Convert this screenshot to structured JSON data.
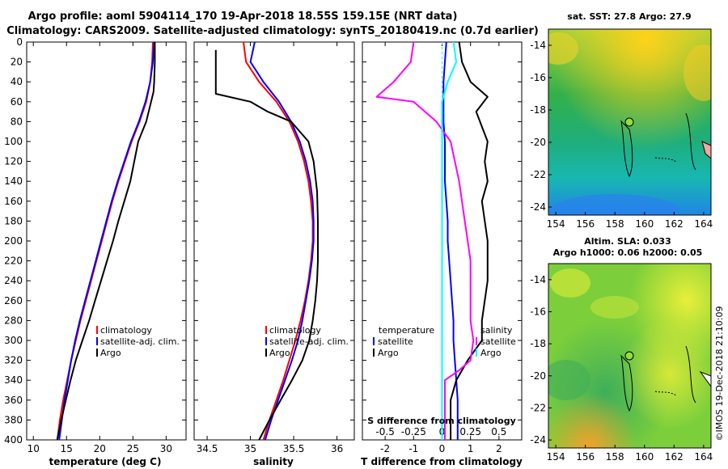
{
  "header": {
    "title_line1": "Argo profile: aoml 5904114_170 19-Apr-2018 18.55S 159.15E (NRT data)",
    "title_line2": "Climatology: CARS2009. Satellite-adjusted climatology: synTS_20180419.nc (0.7d earlier)"
  },
  "credit": "©IMOS 19-Dec-2018 21:10:09",
  "colors": {
    "argo": "#000000",
    "climatology": "#ff0000",
    "satellite": "#0000ff",
    "s_satellite": "#ff00ff",
    "s_argo": "#00ffff"
  },
  "depth_axis": {
    "ylim": [
      400,
      0
    ],
    "ticks": [
      0,
      20,
      40,
      60,
      80,
      100,
      120,
      140,
      160,
      180,
      200,
      220,
      240,
      260,
      280,
      300,
      320,
      340,
      360,
      380,
      400
    ],
    "tick_labels": [
      "0",
      "20",
      "40",
      "60",
      "80",
      "100",
      "120",
      "140",
      "160",
      "180",
      "200",
      "220",
      "240",
      "260",
      "280",
      "300",
      "320",
      "340",
      "360",
      "380",
      "400"
    ]
  },
  "chart_data": [
    {
      "type": "line",
      "id": "temperature",
      "xlabel": "temperature (deg C)",
      "xlim": [
        9,
        33
      ],
      "xticks": [
        10,
        15,
        20,
        25,
        30
      ],
      "xtick_labels": [
        "10",
        "15",
        "20",
        "25",
        "30"
      ],
      "legend": [
        "climatology",
        "satellite-adj. clim.",
        "Argo"
      ],
      "series": [
        {
          "name": "climatology",
          "color": "#ff0000",
          "x": [
            28.0,
            27.9,
            27.6,
            27.0,
            26.0,
            24.8,
            23.8,
            22.8,
            21.9,
            21.1,
            20.3,
            19.5,
            18.7,
            17.9,
            17.1,
            16.4,
            15.7,
            15.1,
            14.5,
            14.0,
            13.6
          ],
          "y": [
            0,
            20,
            40,
            60,
            80,
            100,
            120,
            140,
            160,
            180,
            200,
            220,
            240,
            260,
            280,
            300,
            320,
            340,
            360,
            380,
            400
          ]
        },
        {
          "name": "satellite-adj. clim.",
          "color": "#0000ff",
          "x": [
            28.2,
            28.0,
            27.6,
            26.9,
            25.9,
            24.7,
            23.7,
            22.7,
            21.8,
            21.0,
            20.2,
            19.4,
            18.6,
            17.8,
            17.0,
            16.3,
            15.7,
            15.2,
            14.7,
            14.3,
            13.9
          ],
          "y": [
            0,
            20,
            40,
            60,
            80,
            100,
            120,
            140,
            160,
            180,
            200,
            220,
            240,
            260,
            280,
            300,
            320,
            340,
            360,
            380,
            400
          ]
        },
        {
          "name": "Argo",
          "color": "#000000",
          "x": [
            28.3,
            28.3,
            28.2,
            28.1,
            27.0,
            25.8,
            25.2,
            24.6,
            23.7,
            22.8,
            22.0,
            21.1,
            20.2,
            19.3,
            18.4,
            17.4,
            16.4,
            15.6,
            14.9,
            14.2,
            13.6
          ],
          "y": [
            0,
            20,
            40,
            50,
            80,
            100,
            120,
            140,
            160,
            180,
            200,
            220,
            240,
            260,
            280,
            300,
            320,
            340,
            360,
            380,
            400
          ]
        }
      ]
    },
    {
      "type": "line",
      "id": "salinity",
      "xlabel": "salinity",
      "xlim": [
        34.35,
        36.2
      ],
      "xticks": [
        34.5,
        35,
        35.5,
        36
      ],
      "xtick_labels": [
        "34.5",
        "35",
        "35.5",
        "36"
      ],
      "legend": [
        "climatology",
        "satellite-adj. clim.",
        "Argo"
      ],
      "series": [
        {
          "name": "climatology",
          "color": "#ff0000",
          "x": [
            34.92,
            34.95,
            35.1,
            35.3,
            35.45,
            35.55,
            35.62,
            35.67,
            35.7,
            35.72,
            35.72,
            35.7,
            35.67,
            35.63,
            35.58,
            35.52,
            35.45,
            35.38,
            35.3,
            35.22,
            35.15
          ],
          "y": [
            0,
            20,
            40,
            60,
            80,
            100,
            120,
            140,
            160,
            180,
            200,
            220,
            240,
            260,
            280,
            300,
            320,
            340,
            360,
            380,
            400
          ]
        },
        {
          "name": "satellite-adj. clim.",
          "color": "#0000ff",
          "x": [
            35.05,
            35.0,
            35.15,
            35.33,
            35.47,
            35.57,
            35.64,
            35.69,
            35.72,
            35.73,
            35.73,
            35.71,
            35.68,
            35.64,
            35.6,
            35.55,
            35.48,
            35.4,
            35.32,
            35.24,
            35.17
          ],
          "y": [
            0,
            20,
            40,
            60,
            80,
            100,
            120,
            140,
            160,
            180,
            200,
            220,
            240,
            260,
            280,
            300,
            320,
            340,
            360,
            380,
            400
          ]
        },
        {
          "name": "Argo",
          "color": "#000000",
          "x": [
            34.6,
            34.6,
            34.6,
            34.6,
            35.0,
            35.2,
            35.47,
            35.67,
            35.73,
            35.77,
            35.78,
            35.78,
            35.77,
            35.75,
            35.72,
            35.68,
            35.6,
            35.48,
            35.35,
            35.22,
            35.1
          ],
          "y": [
            8,
            30,
            50,
            52,
            60,
            70,
            80,
            100,
            120,
            150,
            180,
            220,
            240,
            260,
            280,
            300,
            320,
            340,
            360,
            380,
            400
          ]
        }
      ]
    },
    {
      "type": "line",
      "id": "difference",
      "xlabel": "T difference from climatology",
      "xlabel_top": "S difference from climatology",
      "xlim": [
        -2.8,
        2.8
      ],
      "xticks": [
        -2,
        -1,
        0,
        1,
        2
      ],
      "xtick_labels": [
        "-2",
        "-1",
        "0",
        "1",
        "2"
      ],
      "s_xticks": [
        -0.5,
        -0.25,
        0,
        0.25,
        0.5
      ],
      "s_xtick_labels": [
        "-0.5",
        "-0.25",
        "0",
        "0.25",
        "0.5"
      ],
      "legend_temperature_title": "temperature",
      "legend_salinity_title": "salinity",
      "legend": [
        "satellite",
        "Argo",
        "satellite",
        "Argo"
      ],
      "series": [
        {
          "name": "T satellite",
          "color": "#0000ff",
          "x": [
            0.15,
            0.1,
            0.05,
            0.05,
            0.05,
            0.1,
            0.1,
            0.1,
            0.15,
            0.2,
            0.2,
            0.25,
            0.3,
            0.35,
            0.4,
            0.4,
            0.45,
            0.5,
            0.55,
            0.55,
            0.55
          ],
          "y": [
            0,
            20,
            40,
            60,
            80,
            100,
            120,
            140,
            160,
            180,
            200,
            220,
            240,
            260,
            280,
            300,
            320,
            340,
            360,
            380,
            400
          ]
        },
        {
          "name": "T Argo",
          "color": "#000000",
          "x": [
            0.6,
            0.7,
            1.0,
            1.6,
            1.2,
            1.6,
            1.5,
            1.6,
            1.4,
            1.5,
            1.6,
            1.6,
            1.6,
            1.5,
            1.4,
            1.4,
            0.9,
            0.5,
            0.3,
            0.3,
            0.3
          ],
          "y": [
            0,
            20,
            40,
            55,
            70,
            100,
            120,
            140,
            160,
            180,
            200,
            220,
            240,
            260,
            280,
            300,
            320,
            340,
            360,
            380,
            400
          ]
        },
        {
          "name": "S satellite",
          "color": "#ff00ff",
          "x": [
            -1.0,
            -1.1,
            -1.7,
            -2.3,
            -1.0,
            -0.2,
            0.3,
            0.6,
            0.8,
            0.9,
            1.0,
            1.0,
            1.0,
            1.0,
            1.1,
            1.0,
            0.6,
            0.1,
            0.1,
            0.1,
            0.1
          ],
          "y": [
            0,
            20,
            40,
            55,
            60,
            80,
            100,
            140,
            180,
            200,
            220,
            240,
            260,
            280,
            300,
            320,
            330,
            340,
            360,
            380,
            400
          ]
        },
        {
          "name": "S Argo",
          "color": "#00ffff",
          "x": [
            0.4,
            0.5,
            0.2,
            0.0,
            0.0,
            0.0,
            0.0,
            0.0,
            0.0,
            0.0,
            0.0,
            0.0,
            0.0,
            0.0,
            0.0,
            0.0,
            0.0,
            0.0,
            0.0,
            0.0,
            0.0
          ],
          "y": [
            0,
            20,
            40,
            60,
            80,
            100,
            120,
            140,
            160,
            180,
            200,
            220,
            240,
            260,
            280,
            300,
            320,
            340,
            360,
            380,
            400
          ]
        }
      ]
    }
  ],
  "maps": [
    {
      "id": "sst-map",
      "title": "sat. SST: 27.8 Argo: 27.9",
      "xlim": [
        153.5,
        164.5
      ],
      "ylim": [
        -24.5,
        -13
      ],
      "xticks": [
        154,
        156,
        158,
        160,
        162,
        164
      ],
      "xtick_labels": [
        "154",
        "156",
        "158",
        "160",
        "162",
        "164"
      ],
      "yticks": [
        -14,
        -16,
        -18,
        -20,
        -22,
        -24
      ],
      "ytick_labels": [
        "-14",
        "-16",
        "-18",
        "-20",
        "-22",
        "-24"
      ],
      "marker": {
        "lon": 159.15,
        "lat": -18.55
      }
    },
    {
      "id": "sla-map",
      "title_line1": "Altim. SLA: 0.033",
      "title_line2": "Argo h1000: 0.06 h2000: 0.05",
      "xlim": [
        153.5,
        164.5
      ],
      "ylim": [
        -24.5,
        -13
      ],
      "xticks": [
        154,
        156,
        158,
        160,
        162,
        164
      ],
      "xtick_labels": [
        "154",
        "156",
        "158",
        "160",
        "162",
        "164"
      ],
      "yticks": [
        -14,
        -16,
        -18,
        -20,
        -22,
        -24
      ],
      "ytick_labels": [
        "-14",
        "-16",
        "-18",
        "-20",
        "-22",
        "-24"
      ],
      "marker": {
        "lon": 159.15,
        "lat": -18.55
      }
    }
  ]
}
